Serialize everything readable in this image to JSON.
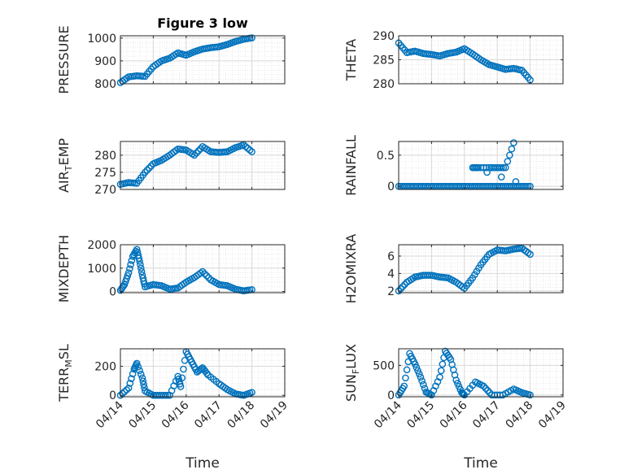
{
  "colors": {
    "marker": "#0072BD",
    "axis": "#262626",
    "grid": "#d8d8d8"
  },
  "x_tick_labels": [
    "04/14",
    "04/15",
    "04/16",
    "04/17",
    "04/18",
    "04/19"
  ],
  "chart_data": [
    {
      "type": "scatter",
      "title": "Figure 3 low",
      "xlabel": "",
      "ylabel": "PRESSURE",
      "xlim": [
        "04/14",
        "04/19"
      ],
      "ylim": [
        800,
        1010
      ],
      "yticks": [
        800,
        900,
        1000
      ],
      "ytick_labels": [
        "800",
        "900",
        "1000"
      ],
      "grid": true,
      "series": [
        {
          "points": [
            [
              "04/14 00:00",
              805
            ],
            [
              "04/14 06:00",
              830
            ],
            [
              "04/14 12:00",
              835
            ],
            [
              "04/14 18:00",
              832
            ],
            [
              "04/15 00:00",
              875
            ],
            [
              "04/15 06:00",
              900
            ],
            [
              "04/15 12:00",
              912
            ],
            [
              "04/15 18:00",
              935
            ],
            [
              "04/16 00:00",
              925
            ],
            [
              "04/16 06:00",
              940
            ],
            [
              "04/16 12:00",
              952
            ],
            [
              "04/16 18:00",
              958
            ],
            [
              "04/17 00:00",
              962
            ],
            [
              "04/17 06:00",
              972
            ],
            [
              "04/17 12:00",
              985
            ],
            [
              "04/17 18:00",
              995
            ],
            [
              "04/18 00:00",
              1001
            ]
          ]
        }
      ]
    },
    {
      "type": "scatter",
      "title": "",
      "xlabel": "",
      "ylabel": "THETA",
      "xlim": [
        "04/14",
        "04/19"
      ],
      "ylim": [
        280,
        290
      ],
      "yticks": [
        280,
        285,
        290
      ],
      "ytick_labels": [
        "280",
        "285",
        "290"
      ],
      "grid": true,
      "series": [
        {
          "points": [
            [
              "04/14 00:00",
              288.5
            ],
            [
              "04/14 06:00",
              286.5
            ],
            [
              "04/14 12:00",
              286.8
            ],
            [
              "04/14 18:00",
              286.3
            ],
            [
              "04/15 00:00",
              286.1
            ],
            [
              "04/15 06:00",
              285.8
            ],
            [
              "04/15 12:00",
              286.3
            ],
            [
              "04/15 18:00",
              286.6
            ],
            [
              "04/16 00:00",
              287.3
            ],
            [
              "04/16 06:00",
              286.2
            ],
            [
              "04/16 12:00",
              285.0
            ],
            [
              "04/16 18:00",
              284.0
            ],
            [
              "04/17 00:00",
              283.5
            ],
            [
              "04/17 06:00",
              283.0
            ],
            [
              "04/17 12:00",
              283.2
            ],
            [
              "04/17 18:00",
              282.8
            ],
            [
              "04/18 00:00",
              280.8
            ]
          ]
        }
      ]
    },
    {
      "type": "scatter",
      "title": "",
      "xlabel": "",
      "ylabel": "AIR_TEMP",
      "ylabel_main": "AIR",
      "ylabel_sub": "T",
      "ylabel_rest": "EMP",
      "xlim": [
        "04/14",
        "04/19"
      ],
      "ylim": [
        270,
        284
      ],
      "yticks": [
        270,
        275,
        280
      ],
      "ytick_labels": [
        "270",
        "275",
        "280"
      ],
      "grid": true,
      "series": [
        {
          "points": [
            [
              "04/14 00:00",
              271.5
            ],
            [
              "04/14 06:00",
              272.0
            ],
            [
              "04/14 12:00",
              271.8
            ],
            [
              "04/14 18:00",
              275.0
            ],
            [
              "04/15 00:00",
              277.5
            ],
            [
              "04/15 06:00",
              278.5
            ],
            [
              "04/15 12:00",
              280.0
            ],
            [
              "04/15 18:00",
              281.8
            ],
            [
              "04/16 00:00",
              281.5
            ],
            [
              "04/16 06:00",
              280.0
            ],
            [
              "04/16 12:00",
              282.5
            ],
            [
              "04/16 18:00",
              281.0
            ],
            [
              "04/17 00:00",
              280.8
            ],
            [
              "04/17 06:00",
              281.0
            ],
            [
              "04/17 12:00",
              282.2
            ],
            [
              "04/17 18:00",
              283.0
            ],
            [
              "04/18 00:00",
              281.0
            ]
          ]
        }
      ]
    },
    {
      "type": "scatter",
      "title": "",
      "xlabel": "",
      "ylabel": "RAINFALL",
      "xlim": [
        "04/14",
        "04/19"
      ],
      "ylim": [
        -0.05,
        0.72
      ],
      "yticks": [
        0,
        0.5
      ],
      "ytick_labels": [
        "0",
        "0.5"
      ],
      "grid": true,
      "series": [
        {
          "points": [
            [
              "04/14 00:00",
              0
            ],
            [
              "04/14 06:00",
              0
            ],
            [
              "04/14 12:00",
              0
            ],
            [
              "04/14 18:00",
              0
            ],
            [
              "04/15 00:00",
              0
            ],
            [
              "04/15 06:00",
              0
            ],
            [
              "04/15 12:00",
              0
            ],
            [
              "04/15 18:00",
              0
            ],
            [
              "04/16 00:00",
              0
            ],
            [
              "04/16 06:00",
              0
            ],
            [
              "04/16 12:00",
              0
            ],
            [
              "04/16 18:00",
              0
            ],
            [
              "04/17 00:00",
              0
            ],
            [
              "04/17 06:00",
              0
            ],
            [
              "04/17 12:00",
              0
            ],
            [
              "04/17 18:00",
              0
            ],
            [
              "04/18 00:00",
              0
            ],
            [
              "04/16 06:00",
              0.3
            ],
            [
              "04/16 10:00",
              0.3
            ],
            [
              "04/16 18:00",
              0.3
            ],
            [
              "04/17 00:00",
              0.3
            ],
            [
              "04/17 06:00",
              0.3
            ],
            [
              "04/17 12:00",
              0.7
            ]
          ]
        }
      ]
    },
    {
      "type": "scatter",
      "title": "",
      "xlabel": "",
      "ylabel": "MIXDEPTH",
      "xlim": [
        "04/14",
        "04/19"
      ],
      "ylim": [
        -50,
        2000
      ],
      "yticks": [
        0,
        1000,
        2000
      ],
      "ytick_labels": [
        "0",
        "1000",
        "2000"
      ],
      "grid": true,
      "series": [
        {
          "points": [
            [
              "04/14 00:00",
              50
            ],
            [
              "04/14 03:00",
              300
            ],
            [
              "04/14 06:00",
              800
            ],
            [
              "04/14 09:00",
              1500
            ],
            [
              "04/14 12:00",
              1800
            ],
            [
              "04/14 14:00",
              1300
            ],
            [
              "04/14 16:00",
              700
            ],
            [
              "04/14 18:00",
              200
            ],
            [
              "04/15 00:00",
              300
            ],
            [
              "04/15 06:00",
              250
            ],
            [
              "04/15 12:00",
              100
            ],
            [
              "04/15 18:00",
              150
            ],
            [
              "04/16 00:00",
              400
            ],
            [
              "04/16 06:00",
              600
            ],
            [
              "04/16 12:00",
              850
            ],
            [
              "04/16 18:00",
              500
            ],
            [
              "04/17 00:00",
              300
            ],
            [
              "04/17 06:00",
              250
            ],
            [
              "04/17 12:00",
              100
            ],
            [
              "04/17 18:00",
              30
            ],
            [
              "04/18 00:00",
              80
            ]
          ]
        }
      ]
    },
    {
      "type": "scatter",
      "title": "",
      "xlabel": "",
      "ylabel": "H2OMIXRA",
      "xlim": [
        "04/14",
        "04/19"
      ],
      "ylim": [
        1.8,
        7.3
      ],
      "yticks": [
        2,
        4,
        6
      ],
      "ytick_labels": [
        "2",
        "4",
        "6"
      ],
      "grid": true,
      "series": [
        {
          "points": [
            [
              "04/14 00:00",
              2.0
            ],
            [
              "04/14 06:00",
              3.0
            ],
            [
              "04/14 12:00",
              3.6
            ],
            [
              "04/14 18:00",
              3.8
            ],
            [
              "04/15 00:00",
              3.8
            ],
            [
              "04/15 06:00",
              3.6
            ],
            [
              "04/15 12:00",
              3.5
            ],
            [
              "04/15 18:00",
              3.0
            ],
            [
              "04/16 00:00",
              2.3
            ],
            [
              "04/16 06:00",
              3.5
            ],
            [
              "04/16 12:00",
              5.0
            ],
            [
              "04/16 18:00",
              6.2
            ],
            [
              "04/17 00:00",
              6.7
            ],
            [
              "04/17 06:00",
              6.6
            ],
            [
              "04/17 12:00",
              6.8
            ],
            [
              "04/17 18:00",
              6.9
            ],
            [
              "04/18 00:00",
              6.2
            ]
          ]
        }
      ]
    },
    {
      "type": "scatter",
      "title": "",
      "xlabel": "Time",
      "ylabel": "TERR_MSL",
      "ylabel_main": "TERR",
      "ylabel_sub": "M",
      "ylabel_rest": "SL",
      "xlim": [
        "04/14",
        "04/19"
      ],
      "ylim": [
        -10,
        320
      ],
      "yticks": [
        0,
        200
      ],
      "ytick_labels": [
        "0",
        "200"
      ],
      "grid": true,
      "series": [
        {
          "points": [
            [
              "04/14 00:00",
              0
            ],
            [
              "04/14 06:00",
              50
            ],
            [
              "04/14 10:00",
              180
            ],
            [
              "04/14 12:00",
              220
            ],
            [
              "04/14 16:00",
              120
            ],
            [
              "04/14 18:00",
              30
            ],
            [
              "04/15 00:00",
              0
            ],
            [
              "04/15 06:00",
              0
            ],
            [
              "04/15 12:00",
              0
            ],
            [
              "04/15 18:00",
              130
            ],
            [
              "04/15 20:00",
              60
            ],
            [
              "04/16 00:00",
              300
            ],
            [
              "04/16 04:00",
              230
            ],
            [
              "04/16 08:00",
              160
            ],
            [
              "04/16 12:00",
              190
            ],
            [
              "04/16 16:00",
              140
            ],
            [
              "04/17 00:00",
              80
            ],
            [
              "04/17 06:00",
              40
            ],
            [
              "04/17 12:00",
              10
            ],
            [
              "04/17 18:00",
              0
            ],
            [
              "04/18 00:00",
              20
            ]
          ]
        }
      ]
    },
    {
      "type": "scatter",
      "title": "",
      "xlabel": "Time",
      "ylabel": "SUN_FLUX",
      "ylabel_main": "SUN",
      "ylabel_sub": "F",
      "ylabel_rest": "LUX",
      "xlim": [
        "04/14",
        "04/19"
      ],
      "ylim": [
        -30,
        780
      ],
      "yticks": [
        0,
        500
      ],
      "ytick_labels": [
        "0",
        "500"
      ],
      "grid": true,
      "series": [
        {
          "points": [
            [
              "04/14 00:00",
              0
            ],
            [
              "04/14 04:00",
              150
            ],
            [
              "04/14 08:00",
              700
            ],
            [
              "04/14 12:00",
              520
            ],
            [
              "04/14 16:00",
              300
            ],
            [
              "04/14 20:00",
              50
            ],
            [
              "04/15 00:00",
              0
            ],
            [
              "04/15 06:00",
              300
            ],
            [
              "04/15 10:00",
              740
            ],
            [
              "04/15 14:00",
              600
            ],
            [
              "04/15 18:00",
              250
            ],
            [
              "04/15 22:00",
              40
            ],
            [
              "04/16 00:00",
              0
            ],
            [
              "04/16 08:00",
              220
            ],
            [
              "04/16 14:00",
              150
            ],
            [
              "04/16 20:00",
              0
            ],
            [
              "04/17 04:00",
              0
            ],
            [
              "04/17 12:00",
              100
            ],
            [
              "04/17 18:00",
              40
            ],
            [
              "04/18 00:00",
              0
            ]
          ]
        }
      ]
    }
  ]
}
